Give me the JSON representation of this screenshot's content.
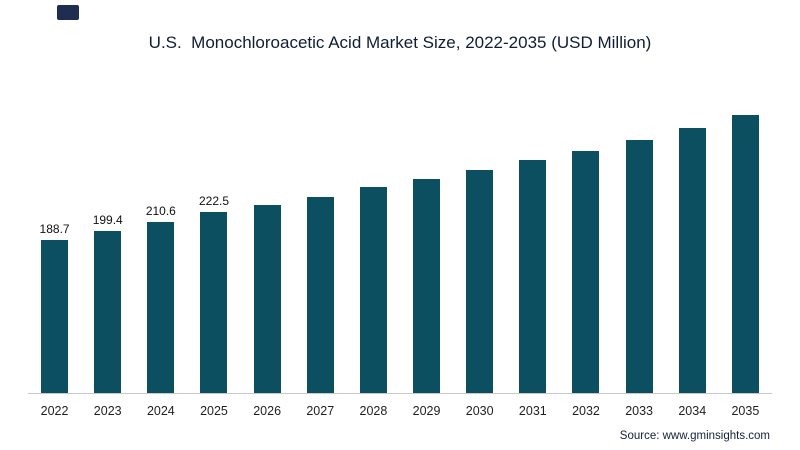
{
  "page": {
    "title": "U.S.  Monochloroacetic Acid Market Size, 2022-2035 (USD Million)",
    "source": "Source: www.gminsights.com"
  },
  "colors": {
    "bar": "#0b4f60",
    "title": "#0f1e35",
    "axis": "#c9c9c9",
    "logo": "#1e2d50"
  },
  "chart_data": {
    "type": "bar",
    "title": "U.S. Monochloroacetic Acid Market Size, 2022-2035 (USD Million)",
    "unit": "USD Million",
    "categories": [
      "2022",
      "2023",
      "2024",
      "2025",
      "2026",
      "2027",
      "2028",
      "2029",
      "2030",
      "2031",
      "2032",
      "2033",
      "2034",
      "2035"
    ],
    "values": [
      188.7,
      199.4,
      210.6,
      222.5,
      231,
      241,
      253,
      263,
      274,
      286,
      298,
      311,
      326,
      342
    ],
    "data_labels": [
      "188.7",
      "199.4",
      "210.6",
      "222.5",
      "",
      "",
      "",
      "",
      "",
      "",
      "",
      "",
      "",
      ""
    ],
    "xlabel": "",
    "ylabel": "",
    "ylim": [
      0,
      360
    ],
    "grid": false,
    "legend": false,
    "source": "Source: www.gminsights.com"
  }
}
